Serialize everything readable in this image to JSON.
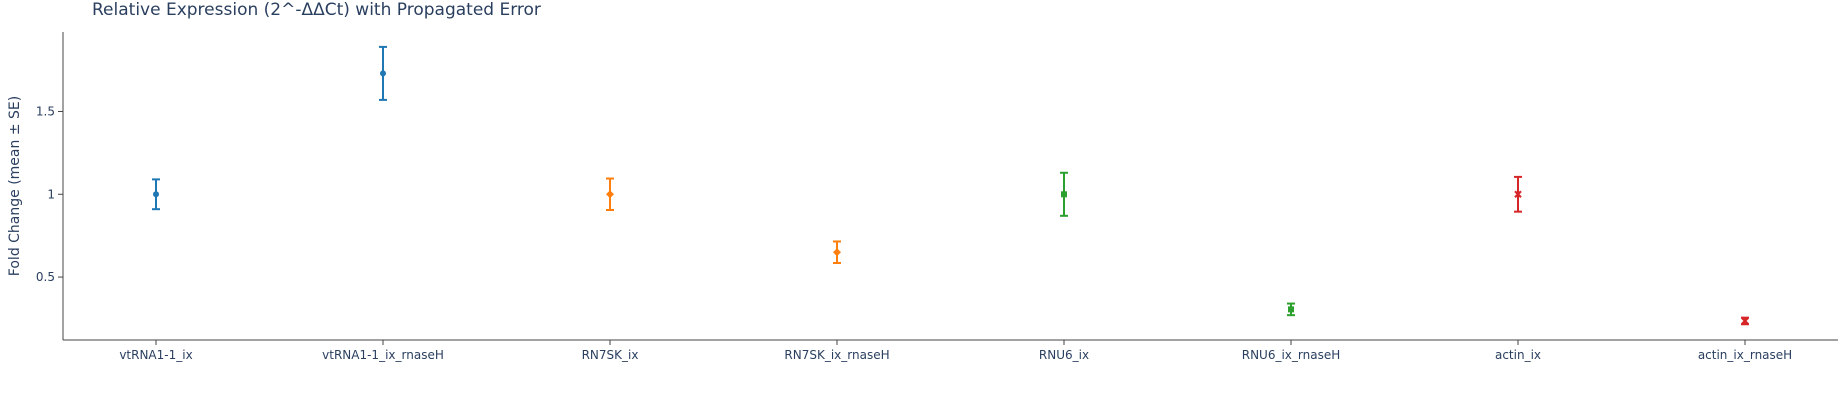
{
  "chart_data": {
    "type": "scatter",
    "title": "Relative Expression (2^-ΔΔCt) with Propagated Error",
    "xlabel": "",
    "ylabel": "Fold Change (mean ± SE)",
    "categories": [
      "vtRNA1-1_ix",
      "vtRNA1-1_ix_rnaseH",
      "RN7SK_ix",
      "RN7SK_ix_rnaseH",
      "RNU6_ix",
      "RNU6_ix_rnaseH",
      "actin_ix",
      "actin_ix_rnaseH"
    ],
    "ylim": [
      0.12,
      1.98
    ],
    "yticks": [
      0.5,
      1,
      1.5
    ],
    "ytick_labels": [
      "0.5",
      "1",
      "1.5"
    ],
    "grid": false,
    "legend": "none",
    "series": [
      {
        "color": "#1f77b4",
        "marker": "circle",
        "points": [
          {
            "x": "vtRNA1-1_ix",
            "y": 1.0,
            "err": 0.09
          },
          {
            "x": "vtRNA1-1_ix_rnaseH",
            "y": 1.73,
            "err": 0.16
          }
        ]
      },
      {
        "color": "#ff7f0e",
        "marker": "diamond",
        "points": [
          {
            "x": "RN7SK_ix",
            "y": 1.0,
            "err": 0.095
          },
          {
            "x": "RN7SK_ix_rnaseH",
            "y": 0.65,
            "err": 0.065
          }
        ]
      },
      {
        "color": "#2ca02c",
        "marker": "square",
        "points": [
          {
            "x": "RNU6_ix",
            "y": 1.0,
            "err": 0.13
          },
          {
            "x": "RNU6_ix_rnaseH",
            "y": 0.305,
            "err": 0.035
          }
        ]
      },
      {
        "color": "#d62728",
        "marker": "x",
        "points": [
          {
            "x": "actin_ix",
            "y": 1.0,
            "err": 0.105
          },
          {
            "x": "actin_ix_rnaseH",
            "y": 0.235,
            "err": 0.02
          }
        ]
      }
    ]
  }
}
